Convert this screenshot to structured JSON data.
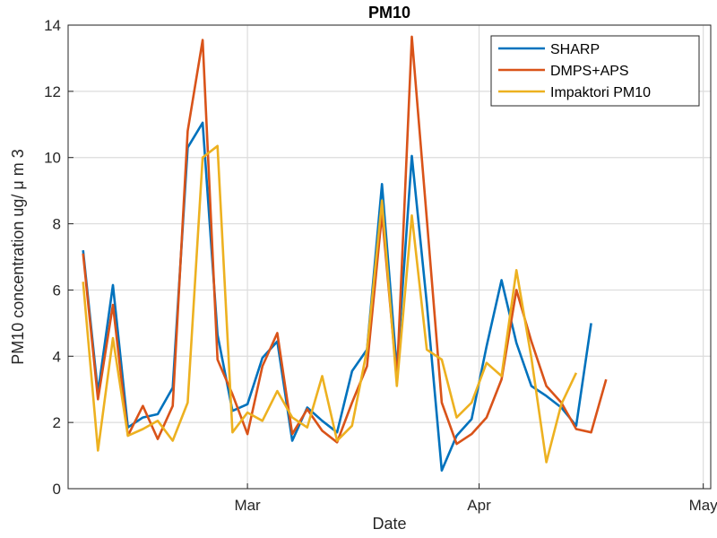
{
  "chart_data": {
    "type": "line",
    "title": "PM10",
    "xlabel": "Date",
    "ylabel": "PM10 concentration ug/ μ m 3",
    "ylim": [
      0,
      14
    ],
    "xlim": [
      "2015-02-05",
      "2015-05-02"
    ],
    "yticks": [
      "0",
      "2",
      "4",
      "6",
      "8",
      "10",
      "12",
      "14"
    ],
    "xticks": [
      {
        "date": "2015-03-01",
        "label": "Mar"
      },
      {
        "date": "2015-04-01",
        "label": "Apr"
      },
      {
        "date": "2015-05-01",
        "label": "May"
      }
    ],
    "grid": true,
    "legend_position": "top-right",
    "x": [
      "2015-02-07",
      "2015-02-09",
      "2015-02-11",
      "2015-02-13",
      "2015-02-15",
      "2015-02-17",
      "2015-02-19",
      "2015-02-21",
      "2015-02-23",
      "2015-02-25",
      "2015-02-27",
      "2015-03-01",
      "2015-03-03",
      "2015-03-05",
      "2015-03-07",
      "2015-03-09",
      "2015-03-11",
      "2015-03-13",
      "2015-03-15",
      "2015-03-17",
      "2015-03-19",
      "2015-03-21",
      "2015-03-23",
      "2015-03-25",
      "2015-03-27",
      "2015-03-29",
      "2015-03-31",
      "2015-04-02",
      "2015-04-04",
      "2015-04-06",
      "2015-04-08",
      "2015-04-10",
      "2015-04-12",
      "2015-04-14",
      "2015-04-16",
      "2015-04-18",
      "2015-04-20",
      "2015-04-22",
      "2015-04-24",
      "2015-04-26",
      "2015-04-28",
      "2015-04-30"
    ],
    "series": [
      {
        "name": "SHARP",
        "color": "#0072BD",
        "values": [
          7.2,
          2.9,
          6.15,
          1.85,
          2.15,
          2.25,
          3.05,
          10.3,
          11.05,
          4.65,
          2.35,
          2.55,
          3.95,
          4.45,
          1.45,
          2.45,
          2.05,
          1.7,
          3.55,
          4.2,
          9.2,
          3.6,
          10.05,
          5.6,
          0.55,
          1.6,
          2.1,
          4.3,
          6.3,
          4.4,
          3.1,
          2.8,
          2.45,
          1.9,
          5.0,
          null,
          null,
          null,
          null,
          null,
          null,
          null
        ]
      },
      {
        "name": "DMPS+APS",
        "color": "#D95319",
        "values": [
          7.1,
          2.7,
          5.55,
          1.6,
          2.5,
          1.5,
          2.5,
          10.8,
          13.55,
          3.9,
          2.85,
          1.65,
          3.7,
          4.7,
          1.65,
          2.4,
          1.75,
          1.4,
          2.6,
          3.7,
          8.3,
          3.3,
          13.65,
          8.15,
          2.6,
          1.35,
          1.65,
          2.15,
          3.3,
          6.0,
          4.45,
          3.1,
          2.6,
          1.8,
          1.7,
          3.3,
          null,
          null,
          null,
          null,
          null,
          null
        ]
      },
      {
        "name": "Impaktori PM10",
        "color": "#EDB120",
        "values": [
          6.25,
          1.15,
          4.55,
          1.6,
          1.8,
          2.05,
          1.45,
          2.6,
          10.0,
          10.35,
          1.7,
          2.3,
          2.05,
          2.95,
          2.15,
          1.85,
          3.4,
          1.45,
          1.9,
          4.2,
          8.7,
          3.1,
          8.25,
          4.2,
          3.9,
          2.15,
          2.6,
          3.8,
          3.4,
          6.6,
          3.95,
          0.8,
          2.55,
          3.5,
          null,
          null,
          null,
          null,
          null,
          null,
          null,
          null
        ]
      }
    ]
  }
}
